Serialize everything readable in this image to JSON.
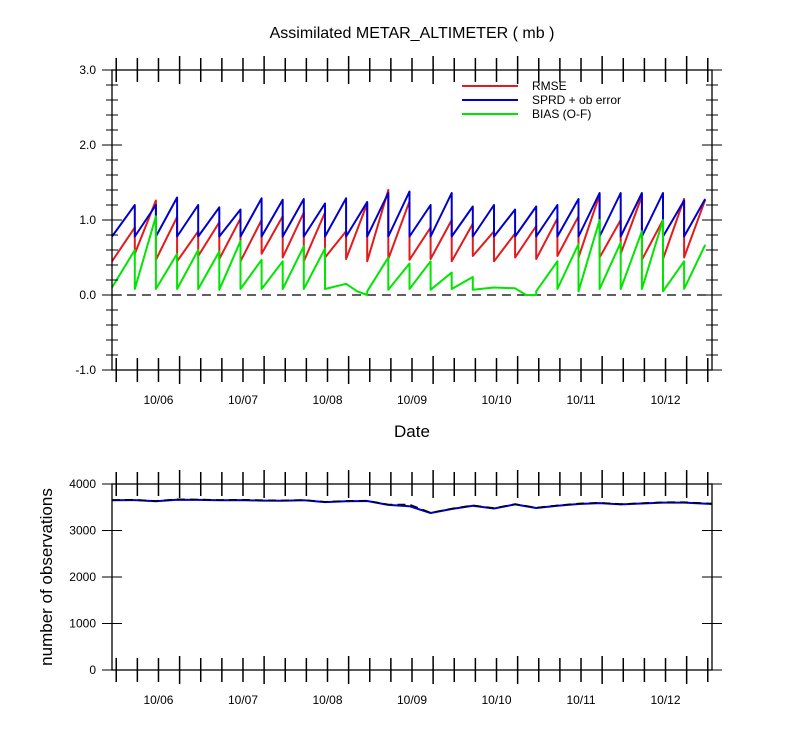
{
  "chart_data": [
    {
      "type": "line",
      "title": "Assimilated METAR_ALTIMETER ( mb )",
      "xlabel": "Date",
      "ylabel": "",
      "ylim": [
        -1.0,
        3.0
      ],
      "yticks": [
        "-1.0",
        "0.0",
        "1.0",
        "2.0",
        "3.0"
      ],
      "x_tick_labels": [
        "10/06",
        "10/07",
        "10/08",
        "10/09",
        "10/10",
        "10/11",
        "10/12"
      ],
      "x_range_days": [
        5.2,
        12.3
      ],
      "zero_reference_line": "dashed",
      "legend_position": "top-right",
      "series": [
        {
          "name": "RMSE",
          "color": "#e41a1c",
          "x": [
            5.2,
            5.47,
            5.47,
            5.72,
            5.72,
            5.97,
            5.97,
            6.22,
            6.22,
            6.47,
            6.47,
            6.72,
            6.72,
            6.97,
            6.97,
            7.22,
            7.22,
            7.47,
            7.47,
            7.72,
            7.72,
            7.97,
            7.97,
            8.22,
            8.22,
            8.47,
            8.47,
            8.72,
            8.72,
            8.97,
            8.97,
            9.22,
            9.22,
            9.47,
            9.47,
            9.72,
            9.72,
            9.97,
            9.97,
            10.22,
            10.22,
            10.47,
            10.47,
            10.72,
            10.72,
            10.97,
            10.97,
            11.22,
            11.22,
            11.47,
            11.47,
            11.72,
            11.72,
            11.97,
            11.97,
            12.22
          ],
          "values": [
            0.45,
            0.9,
            0.55,
            1.26,
            0.47,
            1.04,
            0.45,
            0.85,
            0.52,
            0.97,
            0.48,
            1.02,
            0.45,
            1.0,
            0.55,
            1.05,
            0.5,
            1.1,
            0.45,
            1.1,
            0.5,
            0.85,
            0.48,
            1.22,
            0.45,
            1.4,
            0.48,
            1.25,
            0.47,
            0.9,
            0.48,
            1.0,
            0.45,
            0.95,
            0.52,
            0.85,
            0.45,
            0.82,
            0.5,
            0.92,
            0.48,
            1.02,
            0.52,
            1.05,
            0.5,
            1.34,
            0.5,
            1.0,
            0.55,
            1.32,
            0.47,
            1.0,
            0.48,
            1.28,
            0.5,
            1.27
          ]
        },
        {
          "name": "SPRD + ob error",
          "color": "#0000cc",
          "x": [
            5.2,
            5.47,
            5.47,
            5.72,
            5.72,
            5.97,
            5.97,
            6.22,
            6.22,
            6.47,
            6.47,
            6.72,
            6.72,
            6.97,
            6.97,
            7.22,
            7.22,
            7.47,
            7.47,
            7.72,
            7.72,
            7.97,
            7.97,
            8.22,
            8.22,
            8.47,
            8.47,
            8.72,
            8.72,
            8.97,
            8.97,
            9.22,
            9.22,
            9.47,
            9.47,
            9.72,
            9.72,
            9.97,
            9.97,
            10.22,
            10.22,
            10.47,
            10.47,
            10.72,
            10.72,
            10.97,
            10.97,
            11.22,
            11.22,
            11.47,
            11.47,
            11.72,
            11.72,
            11.97,
            11.97,
            12.22
          ],
          "values": [
            0.78,
            1.2,
            0.78,
            1.2,
            0.78,
            1.3,
            0.78,
            1.2,
            0.78,
            1.17,
            0.78,
            1.14,
            0.78,
            1.29,
            0.78,
            1.27,
            0.78,
            1.28,
            0.78,
            1.22,
            0.78,
            1.29,
            0.78,
            1.24,
            0.78,
            1.36,
            0.78,
            1.38,
            0.78,
            1.2,
            0.78,
            1.36,
            0.78,
            1.18,
            0.78,
            1.2,
            0.78,
            1.14,
            0.78,
            1.18,
            0.78,
            1.2,
            0.78,
            1.28,
            0.78,
            1.36,
            0.78,
            1.36,
            0.78,
            1.36,
            0.78,
            1.36,
            0.78,
            1.26,
            0.78,
            1.28
          ]
        },
        {
          "name": "BIAS (O-F)",
          "color": "#00e600",
          "x": [
            5.2,
            5.47,
            5.47,
            5.72,
            5.72,
            5.97,
            5.97,
            6.22,
            6.22,
            6.47,
            6.47,
            6.72,
            6.72,
            6.97,
            6.97,
            7.22,
            7.22,
            7.47,
            7.47,
            7.72,
            7.72,
            7.97,
            8.1,
            8.22,
            8.22,
            8.47,
            8.47,
            8.72,
            8.72,
            8.97,
            8.97,
            9.22,
            9.22,
            9.47,
            9.47,
            9.72,
            9.72,
            9.97,
            10.1,
            10.22,
            10.22,
            10.47,
            10.47,
            10.72,
            10.72,
            10.97,
            10.97,
            11.22,
            11.22,
            11.47,
            11.47,
            11.72,
            11.72,
            11.97,
            11.97,
            12.22
          ],
          "values": [
            0.1,
            0.6,
            0.08,
            1.05,
            0.08,
            0.55,
            0.08,
            0.6,
            0.08,
            0.58,
            0.07,
            0.72,
            0.08,
            0.47,
            0.08,
            0.45,
            0.08,
            0.65,
            0.08,
            0.62,
            0.08,
            0.15,
            0.05,
            0.0,
            0.05,
            0.5,
            0.07,
            0.42,
            0.08,
            0.45,
            0.07,
            0.3,
            0.08,
            0.24,
            0.07,
            0.1,
            0.1,
            0.09,
            0.0,
            0.0,
            0.05,
            0.45,
            0.08,
            0.68,
            0.05,
            1.0,
            0.08,
            0.7,
            0.08,
            0.85,
            0.08,
            1.0,
            0.05,
            0.45,
            0.08,
            0.67
          ]
        }
      ]
    },
    {
      "type": "line",
      "title": "",
      "xlabel": "",
      "ylabel": "number of observations",
      "ylim": [
        0,
        4100
      ],
      "yticks": [
        "0",
        "1000",
        "2000",
        "3000",
        "4000"
      ],
      "x_tick_labels": [
        "10/06",
        "10/07",
        "10/08",
        "10/09",
        "10/10",
        "10/11",
        "10/12"
      ],
      "x_range_days": [
        5.2,
        12.3
      ],
      "series": [
        {
          "color": "#0000cc",
          "x": [
            5.2,
            5.47,
            5.72,
            5.97,
            6.22,
            6.47,
            6.72,
            6.97,
            7.22,
            7.47,
            7.72,
            7.97,
            8.22,
            8.47,
            8.72,
            8.97,
            9.22,
            9.47,
            9.72,
            9.97,
            10.22,
            10.47,
            10.72,
            10.97,
            11.22,
            11.47,
            11.72,
            11.97,
            12.3
          ],
          "values": [
            3740,
            3745,
            3720,
            3755,
            3750,
            3740,
            3745,
            3735,
            3730,
            3740,
            3700,
            3720,
            3725,
            3640,
            3610,
            3460,
            3550,
            3620,
            3560,
            3650,
            3570,
            3620,
            3660,
            3680,
            3650,
            3670,
            3690,
            3690,
            3660
          ]
        },
        {
          "color": "#000000",
          "dashed": true,
          "x": [
            5.2,
            5.47,
            5.72,
            5.97,
            6.22,
            6.47,
            6.72,
            6.97,
            7.22,
            7.47,
            7.72,
            7.97,
            8.22,
            8.47,
            8.72,
            8.97,
            9.22,
            9.47,
            9.72,
            9.97,
            10.22,
            10.47,
            10.72,
            10.97,
            11.22,
            11.47,
            11.72,
            11.97,
            12.3
          ],
          "values": [
            3750,
            3755,
            3730,
            3765,
            3760,
            3750,
            3755,
            3745,
            3740,
            3750,
            3710,
            3730,
            3735,
            3650,
            3650,
            3470,
            3560,
            3630,
            3570,
            3660,
            3580,
            3630,
            3670,
            3690,
            3660,
            3680,
            3700,
            3700,
            3670
          ]
        }
      ]
    }
  ]
}
